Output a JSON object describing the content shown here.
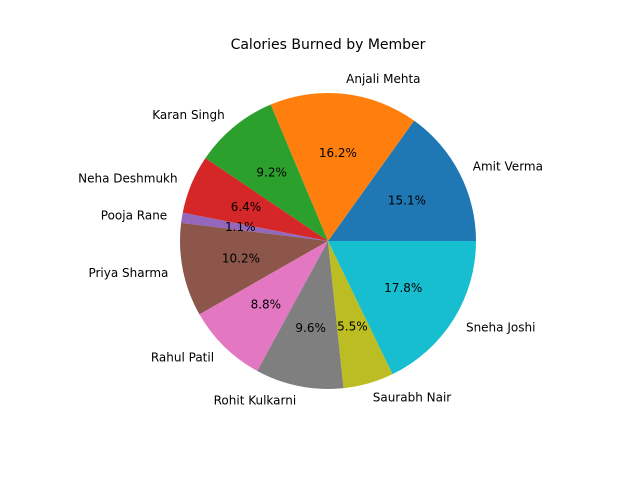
{
  "chart_data": {
    "type": "pie",
    "title": "Calories Burned by Member",
    "start_angle_deg": 0,
    "direction": "counterclockwise",
    "slices": [
      {
        "label": "Amit Verma",
        "percent": 15.1,
        "display": "15.1%",
        "color": "#1f77b4"
      },
      {
        "label": "Anjali Mehta",
        "percent": 16.2,
        "display": "16.2%",
        "color": "#ff7f0e"
      },
      {
        "label": "Karan Singh",
        "percent": 9.2,
        "display": "9.2%",
        "color": "#2ca02c"
      },
      {
        "label": "Neha Deshmukh",
        "percent": 6.4,
        "display": "6.4%",
        "color": "#d62728"
      },
      {
        "label": "Pooja Rane",
        "percent": 1.1,
        "display": "1.1%",
        "color": "#9467bd"
      },
      {
        "label": "Priya Sharma",
        "percent": 10.2,
        "display": "10.2%",
        "color": "#8c564b"
      },
      {
        "label": "Rahul Patil",
        "percent": 8.8,
        "display": "8.8%",
        "color": "#e377c2"
      },
      {
        "label": "Rohit Kulkarni",
        "percent": 9.6,
        "display": "9.6%",
        "color": "#7f7f7f"
      },
      {
        "label": "Saurabh Nair",
        "percent": 5.5,
        "display": "5.5%",
        "color": "#bcbd22"
      },
      {
        "label": "Sneha Joshi",
        "percent": 17.8,
        "display": "17.8%",
        "color": "#17becf"
      }
    ]
  }
}
